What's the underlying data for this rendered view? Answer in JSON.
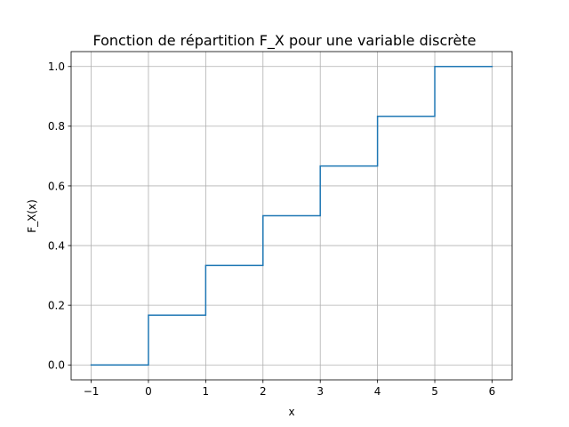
{
  "chart_data": {
    "type": "line",
    "step": "post",
    "title": "Fonction de répartition F_X pour une variable discrète",
    "xlabel": "x",
    "ylabel": "F_X(x)",
    "xlim": [
      -1.35,
      6.35
    ],
    "ylim": [
      -0.05,
      1.05
    ],
    "xticks": [
      -1,
      0,
      1,
      2,
      3,
      4,
      5,
      6
    ],
    "xtick_labels": [
      "−1",
      "0",
      "1",
      "2",
      "3",
      "4",
      "5",
      "6"
    ],
    "yticks": [
      0.0,
      0.2,
      0.4,
      0.6,
      0.8,
      1.0
    ],
    "ytick_labels": [
      "0.0",
      "0.2",
      "0.4",
      "0.6",
      "0.8",
      "1.0"
    ],
    "grid": true,
    "color": "#1f77b4",
    "x": [
      -1,
      0,
      1,
      2,
      3,
      4,
      5,
      6
    ],
    "y": [
      0.0,
      0.1667,
      0.3333,
      0.5,
      0.6667,
      0.8333,
      1.0,
      1.0
    ]
  }
}
